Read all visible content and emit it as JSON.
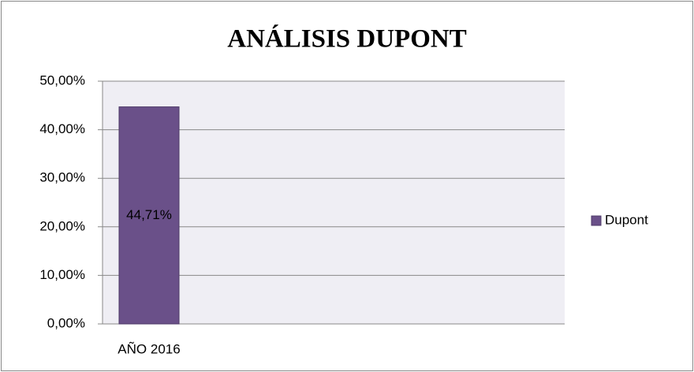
{
  "chart_data": {
    "type": "bar",
    "title": "ANÁLISIS DUPONT",
    "categories": [
      "AÑO 2016"
    ],
    "series": [
      {
        "name": "Dupont",
        "color": "#6a5089",
        "values": [
          44.71
        ],
        "value_labels": [
          "44,71%"
        ]
      }
    ],
    "ylim": [
      0,
      50
    ],
    "yticks": [
      {
        "value": 0,
        "label": "0,00%"
      },
      {
        "value": 10,
        "label": "10,00%"
      },
      {
        "value": 20,
        "label": "20,00%"
      },
      {
        "value": 30,
        "label": "30,00%"
      },
      {
        "value": 40,
        "label": "40,00%"
      },
      {
        "value": 50,
        "label": "50,00%"
      }
    ],
    "grid": true,
    "legend": "right"
  }
}
